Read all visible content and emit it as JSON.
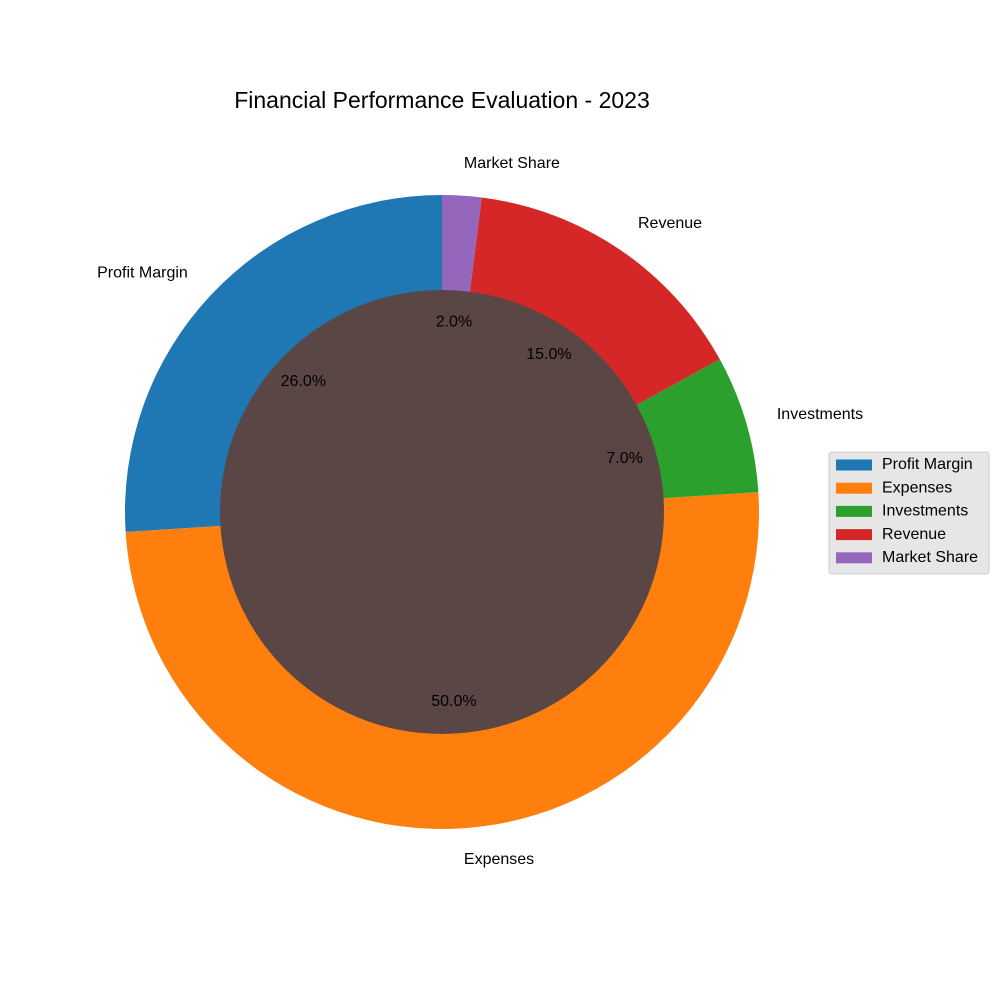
{
  "chart_data": {
    "type": "pie",
    "variant": "donut",
    "title": "Financial Performance Evaluation - 2023",
    "start_angle_deg": 90,
    "direction": "counterclockwise",
    "legend_position": "right",
    "hole_color": "#5a4745",
    "slices": [
      {
        "label": "Profit Margin",
        "value": 26.0,
        "pct_label": "26.0%",
        "color": "#1f77b4"
      },
      {
        "label": "Expenses",
        "value": 50.0,
        "pct_label": "50.0%",
        "color": "#ff7f0e"
      },
      {
        "label": "Investments",
        "value": 7.0,
        "pct_label": "7.0%",
        "color": "#2ca02c"
      },
      {
        "label": "Revenue",
        "value": 15.0,
        "pct_label": "15.0%",
        "color": "#d62728"
      },
      {
        "label": "Market Share",
        "value": 2.0,
        "pct_label": "2.0%",
        "color": "#9467bd"
      }
    ]
  }
}
